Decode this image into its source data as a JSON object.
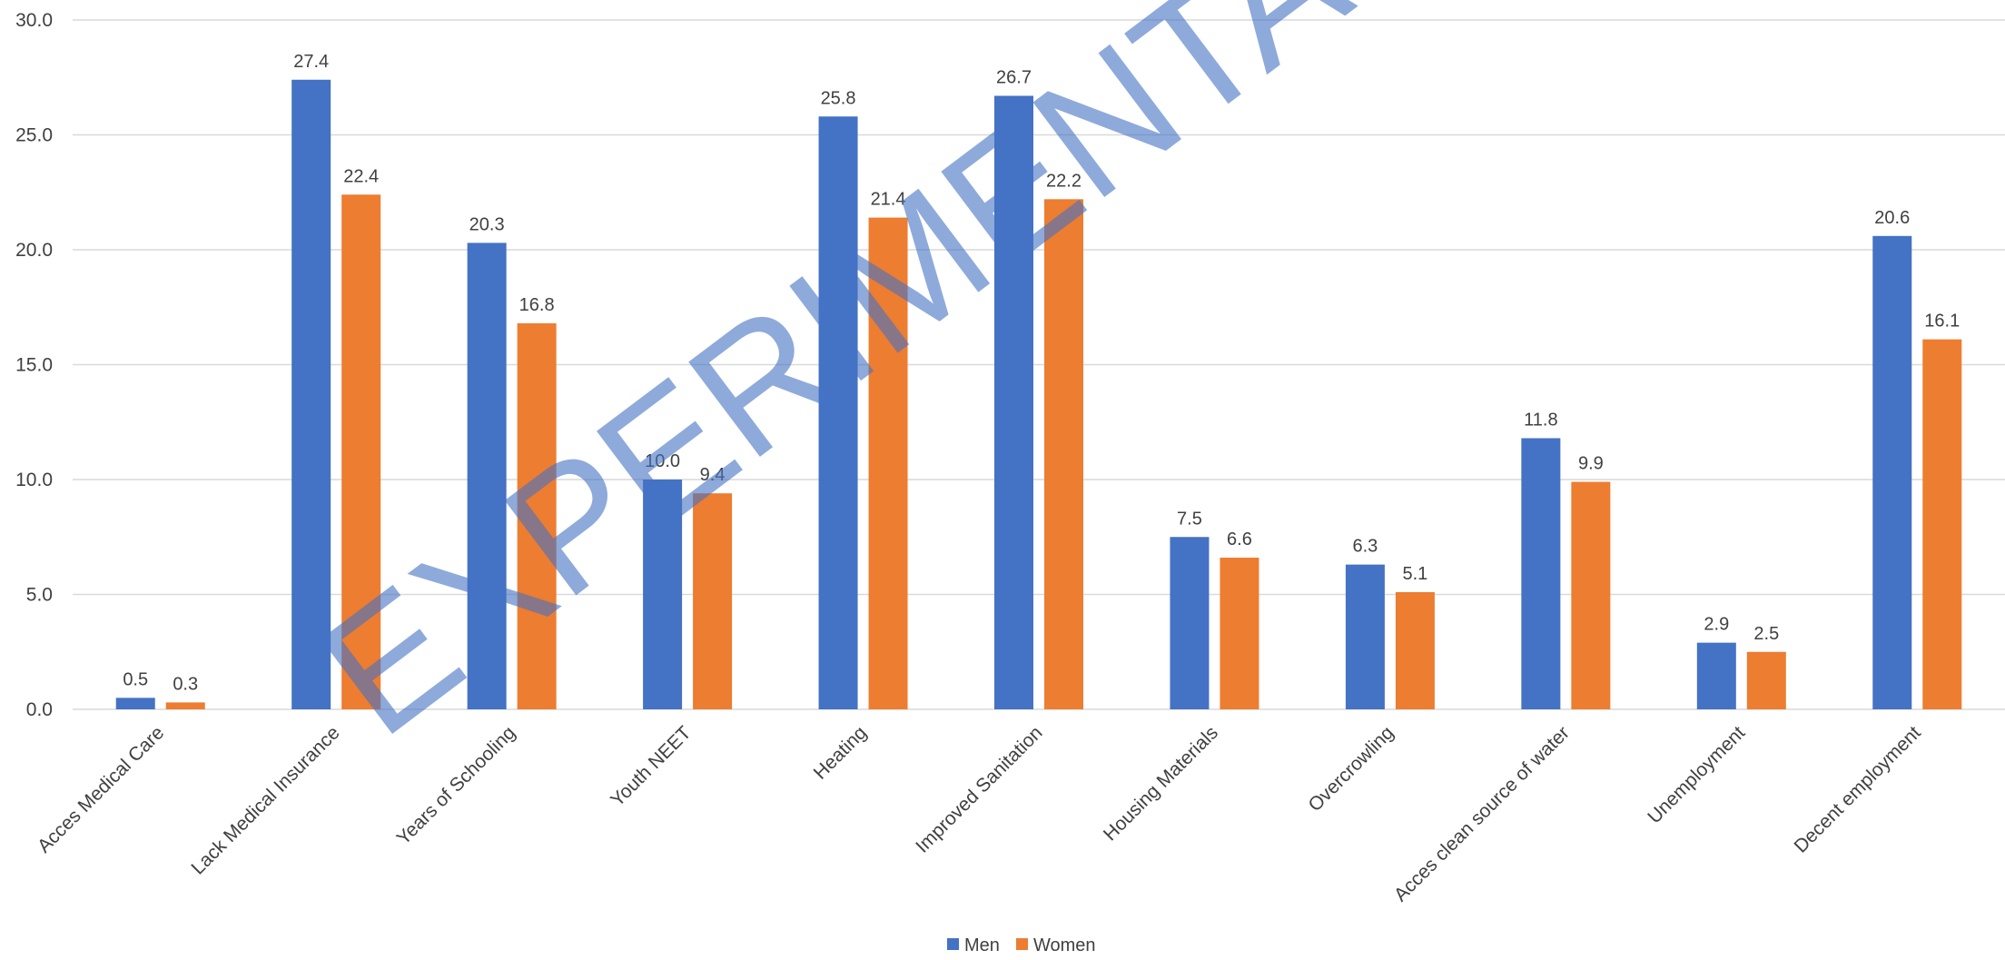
{
  "chart_data": {
    "type": "bar",
    "categories": [
      "Acces Medical Care",
      "Lack Medical Insurance",
      "Years of Schooling",
      "Youth NEET",
      "Heating",
      "Improved Sanitation",
      "Housing Materials",
      "Overcrowling",
      "Acces clean source of water",
      "Unemployment",
      "Decent employment"
    ],
    "series": [
      {
        "name": "Men",
        "color": "#4472c4",
        "values": [
          0.5,
          27.4,
          20.3,
          10.0,
          25.8,
          26.7,
          7.5,
          6.3,
          11.8,
          2.9,
          20.6
        ],
        "labels": [
          "0.5",
          "27.4",
          "20.3",
          "10.0",
          "25.8",
          "26.7",
          "7.5",
          "6.3",
          "11.8",
          "2.9",
          "20.6"
        ]
      },
      {
        "name": "Women",
        "color": "#ed7d31",
        "values": [
          0.3,
          22.4,
          16.8,
          9.4,
          21.4,
          22.2,
          6.6,
          5.1,
          9.9,
          2.5,
          16.1
        ],
        "labels": [
          "0.3",
          "22.4",
          "16.8",
          "9.4",
          "21.4",
          "22.2",
          "6.6",
          "5.1",
          "9.9",
          "2.5",
          "16.1"
        ]
      }
    ],
    "ylim": [
      0,
      30
    ],
    "yticks": [
      "0.0",
      "5.0",
      "10.0",
      "15.0",
      "20.0",
      "25.0",
      "30.0"
    ],
    "grid": true,
    "legend_position": "bottom",
    "title": "",
    "xlabel": "",
    "ylabel": ""
  },
  "watermark": "EXPERIMENTAL"
}
